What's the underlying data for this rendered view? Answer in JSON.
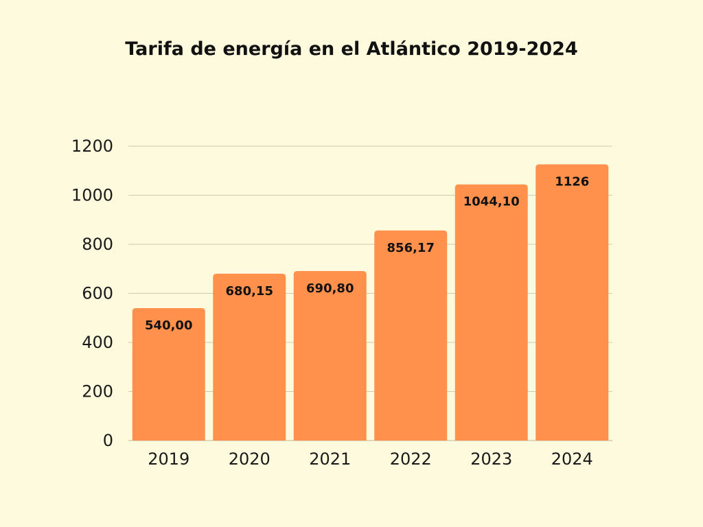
{
  "chart_data": {
    "type": "bar",
    "title": "Tarifa de energía en el Atlántico 2019-2024",
    "xlabel": "",
    "ylabel": "",
    "categories": [
      "2019",
      "2020",
      "2021",
      "2022",
      "2023",
      "2024"
    ],
    "values": [
      540.0,
      680.15,
      690.8,
      856.17,
      1044.1,
      1126
    ],
    "data_labels": [
      "540,00",
      "680,15",
      "690,80",
      "856,17",
      "1044,10",
      "1126"
    ],
    "ylim": [
      0,
      1200
    ],
    "yticks": [
      "0",
      "200",
      "400",
      "600",
      "800",
      "1000",
      "1200"
    ],
    "grid": true,
    "legend": "none",
    "colors": {
      "bar": "#ff914d",
      "grid": "#cfcbb0",
      "background": "#fefadd"
    }
  }
}
